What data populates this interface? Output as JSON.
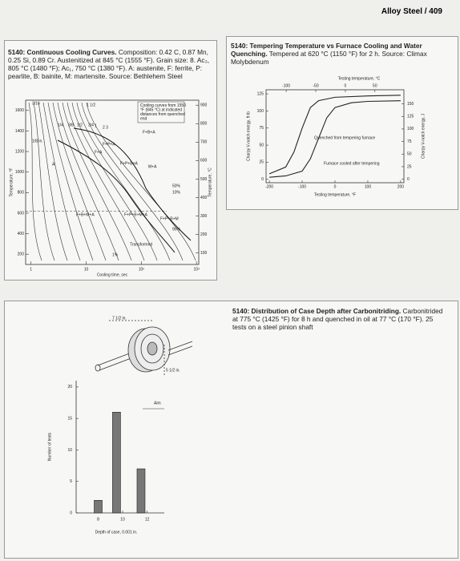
{
  "header": {
    "page": "Alloy Steel / 409"
  },
  "chart_data": [
    {
      "type": "cct",
      "title": "5140: Continuous Cooling Curves.",
      "subtitle": "Composition: 0.42 C, 0.87 Mn, 0.25 Si, 0.89 Cr. Austenitized at 845 °C (1555 °F). Grain size: 8. Ac₃, 805 °C (1480 °F); Ac₁, 750 °C (1380 °F). A: austenite, F: ferrite, P: pearlite, B: bainite, M: martensite. Source: Bethlehem Steel",
      "ylabel": "Temperature, °F",
      "y2label": "Temperature, °C",
      "xlabel": "Cooling time, sec",
      "xscale": "log",
      "xlim": [
        0.8,
        1100
      ],
      "xticks": [
        1,
        10,
        {
          "value": 100,
          "label": "10²"
        },
        {
          "value": 1000,
          "label": "10³"
        }
      ],
      "ylim": [
        100,
        1700
      ],
      "yticks": [
        200,
        400,
        600,
        800,
        1000,
        1200,
        1400,
        1600
      ],
      "y2lim": [
        38,
        927
      ],
      "y2ticks": [
        100,
        200,
        300,
        400,
        500,
        600,
        700,
        800,
        900
      ],
      "annotations": [
        "3/16",
        "1 1/2",
        "1/4",
        "3/8",
        "1/2",
        "3/4",
        "1",
        "2 3",
        "1/8 in.",
        "A",
        "F+A",
        "F+P+A",
        "F+B+A",
        "F+P+B+A",
        "M+A",
        "F+B+M+A",
        "F+P+B+M+A",
        "F+P+B+M",
        "90%",
        "50%",
        "10%",
        "1%",
        "Transformed",
        "Cooling curves from 1550 °F (845 °C) at indicated distances from quenched end"
      ]
    },
    {
      "type": "line",
      "title": "5140: Tempering Temperature vs Furnace Cooling and Water Quenching.",
      "subtitle": "Tempered at 620 °C (1150 °F) for 2 h. Source: Climax Molybdenum",
      "xlabel": "Testing temperature, °F",
      "x2label": "Testing temperature, °C",
      "ylabel": "Charpy V-notch energy, ft·lb",
      "y2label": "Charpy V-notch energy, J",
      "xlim": [
        -210,
        210
      ],
      "xticks": [
        -200,
        -100,
        0,
        100,
        200
      ],
      "x2lim": [
        -134,
        99
      ],
      "x2ticks": [
        -100,
        -50,
        0,
        50
      ],
      "ylim": [
        -5,
        131
      ],
      "yticks": [
        0,
        25,
        50,
        75,
        100,
        125
      ],
      "y2lim": [
        -7,
        178
      ],
      "y2ticks": [
        0,
        25,
        50,
        75,
        100,
        125,
        150
      ],
      "series": [
        {
          "name": "Quenched from tempering furnace",
          "color": "#222",
          "x": [
            -200,
            -150,
            -125,
            -100,
            -75,
            -50,
            0,
            100,
            200
          ],
          "values": [
            8,
            18,
            40,
            75,
            105,
            115,
            120,
            122,
            123
          ]
        },
        {
          "name": "Furnace cooled after tempering",
          "color": "#222",
          "x": [
            -200,
            -150,
            -100,
            -75,
            -50,
            -25,
            0,
            50,
            100,
            200
          ],
          "values": [
            3,
            5,
            12,
            30,
            60,
            90,
            105,
            112,
            114,
            115
          ]
        }
      ]
    },
    {
      "type": "bar",
      "title": "5140: Distribution of Case Depth after Carbonitriding.",
      "subtitle": "Carbonitrided at 775 °C (1425 °F) for 8 h and quenched in oil at 77 °C (170 °F). 25 tests on a steel pinion shaft",
      "xlabel": "Depth of case, 0.001 in.",
      "ylabel": "Number of tests",
      "aim": "Aim",
      "annotations": [
        "7 1/2 in.",
        "5 1/2 in."
      ],
      "x": [
        8,
        9.5,
        11.5
      ],
      "values": [
        2,
        16,
        7
      ],
      "color": "#777",
      "xlim": [
        6.2,
        13.4
      ],
      "xticks": [
        8,
        10,
        12
      ],
      "ylim": [
        0,
        21
      ],
      "yticks": [
        0,
        5,
        10,
        15,
        20
      ]
    }
  ]
}
